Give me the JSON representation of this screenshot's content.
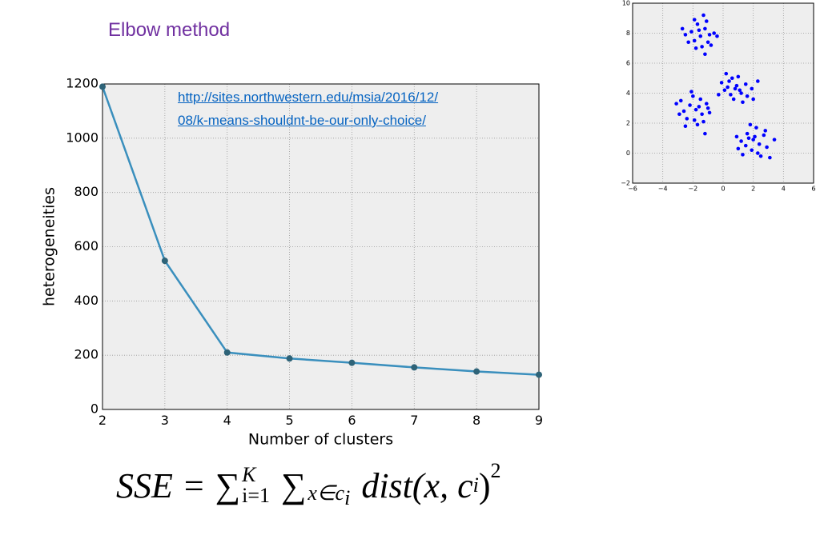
{
  "title": "Elbow method",
  "link": [
    "http://sites.northwestern.edu/msia/2016/12/",
    "08/k-means-shouldnt-be-our-only-choice/"
  ],
  "formula": {
    "lhs": "SSE",
    "eq": "=",
    "sum": "∑",
    "sup1": "K",
    "sub1": "i=1",
    "sub2": "x∈c",
    "sub2i": "i",
    "body": "dist(x, c",
    "bodyi": "i",
    "close": ")",
    "power": "2"
  },
  "chart_data": [
    {
      "type": "line",
      "xlabel": "Number of clusters",
      "ylabel": "heterogeneities",
      "x": [
        2,
        3,
        4,
        5,
        6,
        7,
        8,
        9
      ],
      "values": [
        1190,
        548,
        210,
        188,
        172,
        155,
        140,
        128
      ],
      "color": "#3a8fbd",
      "marker_color": "#2e6378",
      "xlim": [
        2,
        9
      ],
      "xticks": [
        2,
        3,
        4,
        5,
        6,
        7,
        8,
        9
      ],
      "ylim": [
        0,
        1200
      ],
      "yticks": [
        0,
        200,
        400,
        600,
        800,
        1000,
        1200
      ],
      "grid": true
    },
    {
      "type": "scatter",
      "color": "#0000ff",
      "x": [
        -1.5,
        -1.2,
        -1.9,
        -0.9,
        -2.1,
        -1.4,
        -1.7,
        -1.0,
        -2.5,
        -1.3,
        -0.6,
        -1.8,
        -1.1,
        -2.3,
        -1.6,
        -0.4,
        -2.7,
        -1.2,
        -1.9,
        -0.8,
        0.8,
        0.4,
        1.2,
        0.1,
        1.5,
        0.7,
        1.0,
        -0.1,
        1.9,
        0.5,
        1.3,
        0.2,
        2.3,
        0.9,
        -0.3,
        1.6,
        0.6,
        1.1,
        2.0,
        0.3,
        -1.8,
        -2.2,
        -1.4,
        -2.6,
        -1.1,
        -1.9,
        -2.0,
        -3.1,
        -1.5,
        -2.4,
        -0.9,
        -1.7,
        -2.8,
        -1.3,
        -2.1,
        -1.0,
        -2.5,
        -1.6,
        -1.2,
        -2.9,
        2.0,
        1.6,
        2.4,
        1.2,
        2.7,
        1.9,
        2.2,
        0.9,
        2.9,
        1.5,
        2.5,
        1.8,
        3.4,
        1.3,
        2.1,
        2.8,
        1.0,
        2.3,
        3.1,
        1.7
      ],
      "y": [
        7.8,
        8.3,
        7.5,
        7.9,
        8.1,
        7.1,
        8.6,
        7.4,
        7.9,
        9.2,
        8.0,
        7.0,
        8.8,
        7.4,
        8.2,
        7.8,
        8.3,
        6.6,
        8.9,
        7.2,
        4.3,
        4.8,
        4.0,
        4.2,
        4.6,
        3.6,
        5.1,
        4.7,
        4.3,
        3.9,
        3.4,
        5.3,
        4.8,
        4.5,
        3.9,
        3.8,
        5.0,
        4.2,
        3.6,
        4.4,
        2.9,
        3.2,
        2.6,
        2.8,
        3.3,
        2.2,
        3.8,
        3.3,
        3.6,
        2.3,
        2.7,
        1.9,
        3.5,
        2.1,
        4.1,
        3.0,
        1.8,
        3.1,
        1.3,
        2.6,
        0.9,
        1.3,
        0.6,
        0.8,
        1.2,
        0.2,
        1.7,
        1.1,
        0.4,
        0.5,
        -0.2,
        1.9,
        0.9,
        -0.1,
        1.1,
        1.5,
        0.3,
        0.0,
        -0.3,
        1.0
      ],
      "xlim": [
        -6,
        6
      ],
      "xticks": [
        {
          "value": -6,
          "label": "−6"
        },
        {
          "value": -4,
          "label": "−4"
        },
        {
          "value": -2,
          "label": "−2"
        },
        0,
        2,
        4,
        6
      ],
      "ylim": [
        -2,
        10
      ],
      "yticks": [
        {
          "value": -2,
          "label": "−2"
        },
        0,
        2,
        4,
        6,
        8,
        10
      ],
      "grid": true
    }
  ]
}
